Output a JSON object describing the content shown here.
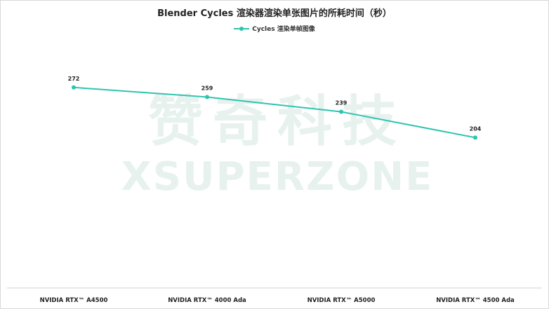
{
  "chart_data": {
    "type": "line",
    "title": "Blender Cycles 渲染器渲染单张图片的所耗时间（秒）",
    "categories": [
      "NVIDIA RTX™ A4500",
      "NVIDIA RTX™ 4000 Ada",
      "NVIDIA RTX™ A5000",
      "NVIDIA RTX™ 4500  Ada"
    ],
    "series": [
      {
        "name": "Cycles 渲染单帧图像",
        "values": [
          272,
          259,
          239,
          204
        ],
        "color": "#2ec4b0"
      }
    ],
    "xlabel": "",
    "ylabel": "",
    "ylim": [
      0,
      345
    ],
    "grid": false,
    "legend": "top-center"
  },
  "watermark": {
    "chinese": "赞奇科技",
    "english": "XSUPERZONE"
  }
}
